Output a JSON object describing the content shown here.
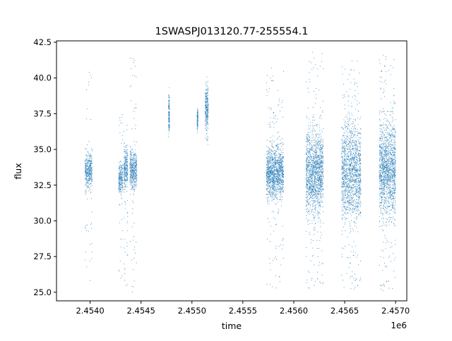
{
  "chart_data": {
    "type": "scatter",
    "title": "1SWASPJ013120.77-255554.1",
    "xlabel": "time",
    "ylabel": "flux",
    "x_offset_label": "1e6",
    "xlim": [
      2.45367,
      2.45711
    ],
    "ylim": [
      24.4,
      42.6
    ],
    "x_ticks": [
      2.454,
      2.4545,
      2.455,
      2.4555,
      2.456,
      2.4565,
      2.457
    ],
    "x_tick_labels": [
      "2.4540",
      "2.4545",
      "2.4550",
      "2.4555",
      "2.4560",
      "2.4565",
      "2.4570"
    ],
    "y_ticks": [
      25.0,
      27.5,
      30.0,
      32.5,
      35.0,
      37.5,
      40.0,
      42.5
    ],
    "y_tick_labels": [
      "25.0",
      "27.5",
      "30.0",
      "32.5",
      "35.0",
      "37.5",
      "40.0",
      "42.5"
    ],
    "grid": false,
    "marker_color": "#1f77b4",
    "point_groups": [
      {
        "x_range": [
          2.45395,
          2.45402
        ],
        "core_range": [
          32.4,
          34.6
        ],
        "outlier_range": [
          25.7,
          40.5
        ]
      },
      {
        "x_range": [
          2.45428,
          2.45432
        ],
        "core_range": [
          32.0,
          34.0
        ],
        "outlier_range": [
          25.3,
          37.6
        ]
      },
      {
        "x_range": [
          2.45433,
          2.45437
        ],
        "core_range": [
          32.5,
          35.0
        ],
        "outlier_range": [
          25.2,
          36.8
        ]
      },
      {
        "x_range": [
          2.45439,
          2.45446
        ],
        "core_range": [
          32.3,
          34.8
        ],
        "outlier_range": [
          25.0,
          41.6
        ]
      },
      {
        "x_range": [
          2.45477,
          2.45478
        ],
        "core_range": [
          36.2,
          38.8
        ],
        "outlier_range": [
          36.2,
          38.8
        ]
      },
      {
        "x_range": [
          2.45505,
          2.45506
        ],
        "core_range": [
          36.4,
          37.8
        ],
        "outlier_range": [
          36.4,
          37.8
        ]
      },
      {
        "x_range": [
          2.45513,
          2.45516
        ],
        "core_range": [
          36.5,
          39.5
        ],
        "outlier_range": [
          35.2,
          39.5
        ]
      },
      {
        "x_range": [
          2.45573,
          2.4559
        ],
        "core_range": [
          31.8,
          35.0
        ],
        "outlier_range": [
          25.1,
          40.7
        ]
      },
      {
        "x_range": [
          2.45612,
          2.45629
        ],
        "core_range": [
          30.8,
          36.0
        ],
        "outlier_range": [
          25.0,
          41.8
        ]
      },
      {
        "x_range": [
          2.45647,
          2.45666
        ],
        "core_range": [
          30.5,
          36.5
        ],
        "outlier_range": [
          25.0,
          41.3
        ]
      },
      {
        "x_range": [
          2.45684,
          2.457
        ],
        "core_range": [
          30.8,
          36.5
        ],
        "outlier_range": [
          25.0,
          41.7
        ]
      }
    ]
  }
}
